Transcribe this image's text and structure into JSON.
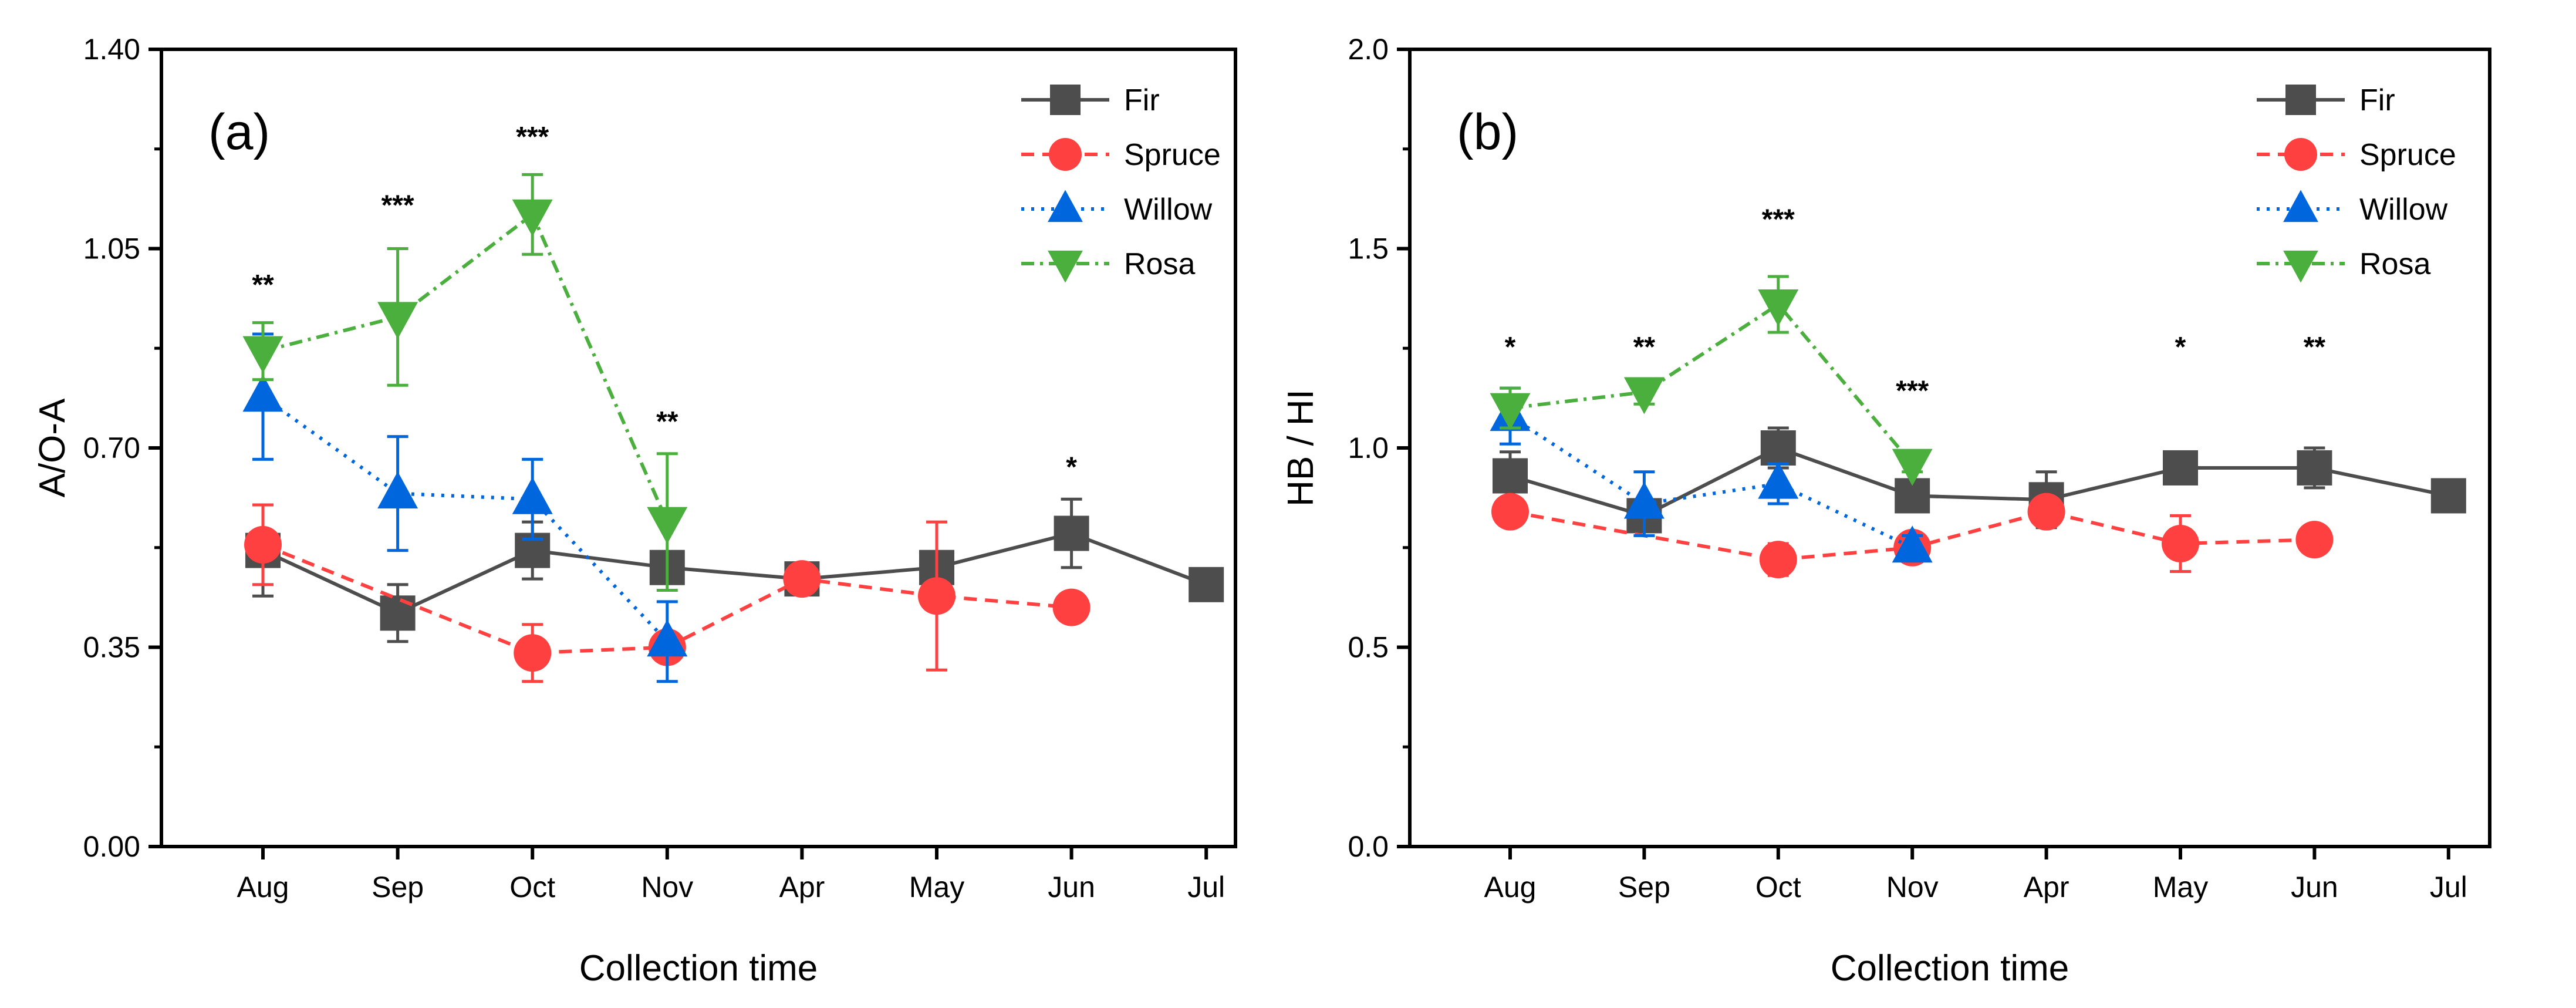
{
  "chart_data": [
    {
      "type": "line",
      "panel_label": "(a)",
      "xlabel": "Collection time",
      "ylabel": "A/O-A",
      "categories": [
        "Aug",
        "Sep",
        "Oct",
        "Nov",
        "Apr",
        "May",
        "Jun",
        "Jul"
      ],
      "ylim": [
        0,
        1.4
      ],
      "yticks": [
        "0.00",
        "0.35",
        "0.70",
        "1.05",
        "1.40"
      ],
      "legend_position": "top-right",
      "series": [
        {
          "name": "Fir",
          "color": "#4d4d4d",
          "dash": "",
          "marker": "square",
          "values": [
            0.52,
            0.41,
            0.52,
            0.49,
            0.47,
            0.49,
            0.55,
            0.46
          ],
          "errors": [
            0.08,
            0.05,
            0.05,
            0.02,
            0.02,
            0.01,
            0.06,
            0.01
          ]
        },
        {
          "name": "Spruce",
          "color": "#ff4040",
          "dash": "22,14",
          "marker": "circle",
          "values": [
            0.53,
            null,
            0.34,
            0.35,
            0.47,
            0.44,
            0.42,
            null
          ],
          "errors": [
            0.07,
            null,
            0.05,
            0.01,
            0.02,
            0.13,
            0.02,
            null
          ]
        },
        {
          "name": "Willow",
          "color": "#0066dd",
          "dash": "5,12",
          "marker": "triangle-up",
          "values": [
            0.79,
            0.62,
            0.61,
            0.36,
            null,
            null,
            null,
            null
          ],
          "errors": [
            0.11,
            0.1,
            0.07,
            0.07,
            null,
            null,
            null,
            null
          ]
        },
        {
          "name": "Rosa",
          "color": "#4aaf3c",
          "dash": "22,10,5,10",
          "marker": "triangle-down",
          "values": [
            0.87,
            0.93,
            1.11,
            0.57,
            null,
            null,
            null,
            null
          ],
          "errors": [
            0.05,
            0.12,
            0.07,
            0.12,
            null,
            null,
            null,
            null
          ]
        }
      ],
      "significance": [
        {
          "category": "Aug",
          "label": "**",
          "y": 0.97
        },
        {
          "category": "Sep",
          "label": "***",
          "y": 1.11
        },
        {
          "category": "Oct",
          "label": "***",
          "y": 1.23
        },
        {
          "category": "Nov",
          "label": "**",
          "y": 0.73
        },
        {
          "category": "Jun",
          "label": "*",
          "y": 0.65
        }
      ]
    },
    {
      "type": "line",
      "panel_label": "(b)",
      "xlabel": "Collection time",
      "ylabel": "HB / HI",
      "categories": [
        "Aug",
        "Sep",
        "Oct",
        "Nov",
        "Apr",
        "May",
        "Jun",
        "Jul"
      ],
      "ylim": [
        0,
        2.0
      ],
      "yticks": [
        "0.0",
        "0.5",
        "1.0",
        "1.5",
        "2.0"
      ],
      "legend_position": "top-right",
      "series": [
        {
          "name": "Fir",
          "color": "#4d4d4d",
          "dash": "",
          "marker": "square",
          "values": [
            0.93,
            0.83,
            1.0,
            0.88,
            0.87,
            0.95,
            0.95,
            0.88
          ],
          "errors": [
            0.06,
            0.03,
            0.05,
            0.01,
            0.07,
            0.01,
            0.05,
            0.01
          ]
        },
        {
          "name": "Spruce",
          "color": "#ff4040",
          "dash": "22,14",
          "marker": "circle",
          "values": [
            0.84,
            null,
            0.72,
            0.75,
            0.84,
            0.76,
            0.77,
            null
          ],
          "errors": [
            0.01,
            null,
            0.04,
            0.02,
            0.03,
            0.07,
            0.01,
            null
          ]
        },
        {
          "name": "Willow",
          "color": "#0066dd",
          "dash": "5,12",
          "marker": "triangle-up",
          "values": [
            1.08,
            0.86,
            0.91,
            0.75,
            null,
            null,
            null,
            null
          ],
          "errors": [
            0.07,
            0.08,
            0.05,
            0.03,
            null,
            null,
            null,
            null
          ]
        },
        {
          "name": "Rosa",
          "color": "#4aaf3c",
          "dash": "22,10,5,10",
          "marker": "triangle-down",
          "values": [
            1.1,
            1.14,
            1.36,
            0.96,
            null,
            null,
            null,
            null
          ],
          "errors": [
            0.05,
            0.03,
            0.07,
            0.02,
            null,
            null,
            null,
            null
          ]
        }
      ],
      "significance": [
        {
          "category": "Aug",
          "label": "*",
          "y": 1.23
        },
        {
          "category": "Sep",
          "label": "**",
          "y": 1.23
        },
        {
          "category": "Oct",
          "label": "***",
          "y": 1.55
        },
        {
          "category": "Nov",
          "label": "***",
          "y": 1.12
        },
        {
          "category": "May",
          "label": "*",
          "y": 1.23
        },
        {
          "category": "Jun",
          "label": "**",
          "y": 1.23
        }
      ]
    }
  ]
}
